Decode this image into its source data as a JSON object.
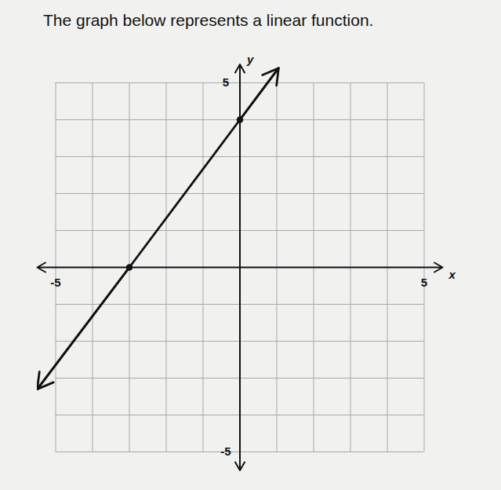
{
  "chart_data": {
    "type": "line",
    "title": "The graph below represents a linear function.",
    "x_label": "x",
    "y_label": "y",
    "x": [
      -5.5,
      -3,
      0,
      1.05
    ],
    "values": [
      -3.3,
      0,
      4,
      5.4
    ],
    "xlim": [
      -5.5,
      5.5
    ],
    "ylim": [
      -5.5,
      5.5
    ],
    "xticks": [
      -5,
      5
    ],
    "yticks": [
      -5,
      5
    ],
    "grid": true,
    "color": "#111111",
    "marker": "circle"
  }
}
